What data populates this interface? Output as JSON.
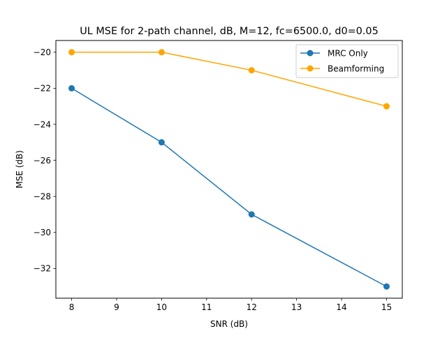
{
  "chart_data": {
    "type": "line",
    "title": "UL MSE for 2-path channel, dB, M=12, fc=6500.0, d0=0.05",
    "xlabel": "SNR (dB)",
    "ylabel": "MSE (dB)",
    "x": [
      8,
      10,
      12,
      15
    ],
    "xlim": [
      7.65,
      15.35
    ],
    "ylim": [
      -33.65,
      -19.35
    ],
    "xticks": [
      8,
      9,
      10,
      11,
      12,
      13,
      14,
      15
    ],
    "yticks": [
      -32,
      -30,
      -28,
      -26,
      -24,
      -22,
      -20
    ],
    "grid": false,
    "legend_position": "top-right",
    "series": [
      {
        "name": "MRC Only",
        "color": "#1f77b4",
        "marker": "circle",
        "values": [
          -22,
          -25,
          -29,
          -33
        ]
      },
      {
        "name": "Beamforming",
        "color": "#ffa500",
        "marker": "circle",
        "values": [
          -20,
          -20,
          -21,
          -23
        ]
      }
    ]
  }
}
